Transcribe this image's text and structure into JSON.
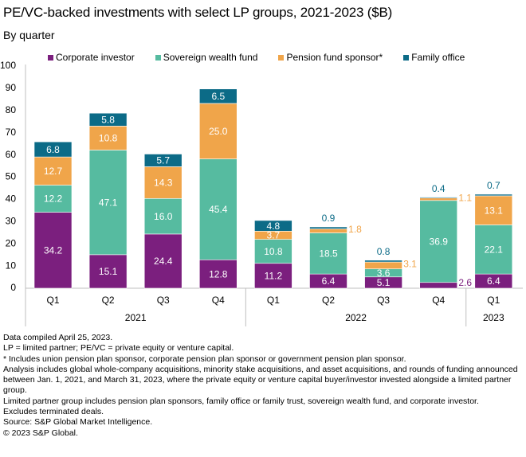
{
  "chart_data": {
    "type": "bar",
    "stacked": true,
    "title": "PE/VC-backed investments with select LP groups, 2021-2023 ($B)",
    "subtitle": "By quarter",
    "xlabel": "",
    "ylabel": "",
    "ylim": [
      0,
      100
    ],
    "yticks": [
      0,
      10,
      20,
      30,
      40,
      50,
      60,
      70,
      80,
      90,
      100
    ],
    "grid": false,
    "legend_position": "top",
    "categories": [
      "Q1",
      "Q2",
      "Q3",
      "Q4",
      "Q1",
      "Q2",
      "Q3",
      "Q4",
      "Q1"
    ],
    "groups": [
      {
        "label": "2021",
        "span": 4
      },
      {
        "label": "2022",
        "span": 4
      },
      {
        "label": "2023",
        "span": 1
      }
    ],
    "series": [
      {
        "name": "Corporate investor",
        "color": "#7B1F7E",
        "values": [
          34.2,
          15.1,
          24.4,
          12.8,
          11.2,
          6.4,
          5.1,
          2.6,
          6.4
        ]
      },
      {
        "name": "Sovereign wealth fund",
        "color": "#56BBA0",
        "values": [
          12.2,
          47.1,
          16.0,
          45.4,
          10.8,
          18.5,
          3.6,
          36.9,
          22.1
        ]
      },
      {
        "name": "Pension fund sponsor*",
        "color": "#F0A54A",
        "values": [
          12.7,
          10.8,
          14.3,
          25.0,
          3.7,
          1.8,
          3.1,
          1.1,
          13.1
        ]
      },
      {
        "name": "Family office",
        "color": "#0C6B87",
        "values": [
          6.8,
          5.8,
          5.7,
          6.5,
          4.8,
          0.9,
          0.8,
          0.4,
          0.7
        ]
      }
    ],
    "outside_labels": [
      {
        "series": 3,
        "index": 5,
        "position": "above"
      },
      {
        "series": 2,
        "index": 5,
        "position": "right"
      },
      {
        "series": 3,
        "index": 6,
        "position": "above"
      },
      {
        "series": 2,
        "index": 6,
        "position": "right"
      },
      {
        "series": 3,
        "index": 7,
        "position": "above"
      },
      {
        "series": 2,
        "index": 7,
        "position": "right"
      },
      {
        "series": 0,
        "index": 7,
        "position": "right"
      },
      {
        "series": 3,
        "index": 8,
        "position": "above"
      }
    ]
  },
  "notes": [
    "Data compiled April 25, 2023.",
    "LP = limited partner; PE/VC = private equity or venture capital.",
    "* Includes union pension plan sponsor, corporate pension plan sponsor or government pension plan sponsor.",
    "Analysis includes global whole-company acquisitions, minority stake acquisitions, and asset acquisitions, and rounds of funding announced between Jan. 1, 2021, and March 31, 2023, where the private equity or venture capital buyer/investor invested alongside a limited partner group.",
    "Limited partner group includes pension plan sponsors, family office or family trust, sovereign wealth fund, and corporate investor.",
    "Excludes terminated deals.",
    "Source: S&P Global Market Intelligence.",
    "© 2023 S&P Global."
  ]
}
